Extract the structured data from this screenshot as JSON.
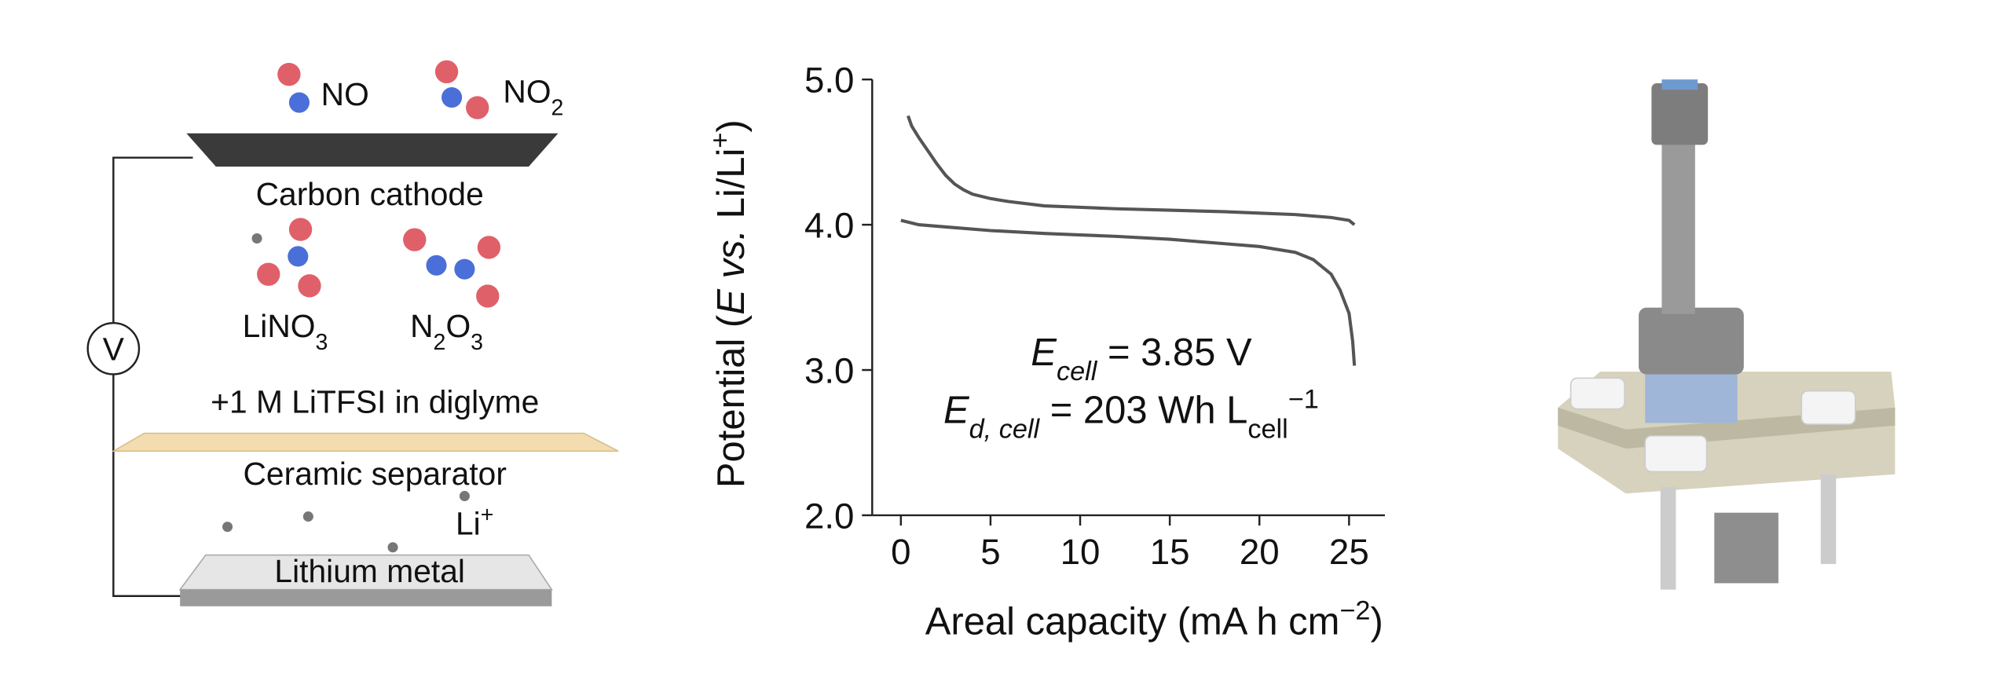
{
  "chart_data": {
    "type": "line",
    "ylabel": [
      {
        "text": "Potential ("
      },
      {
        "text": "E",
        "style": "italic"
      },
      {
        "text": " "
      },
      {
        "text": "vs.",
        "style": "italic"
      },
      {
        "text": " Li/Li"
      },
      {
        "text": "+",
        "style": "sup"
      },
      {
        "text": ")"
      }
    ],
    "xlabel": [
      {
        "text": "Areal capacity (mA h cm"
      },
      {
        "text": "−2",
        "style": "sup"
      },
      {
        "text": ")"
      }
    ],
    "annotations": [
      [
        {
          "text": "E",
          "style": "italic"
        },
        {
          "text": "cell",
          "style": "sub-italic"
        },
        {
          "text": " = 3.85 V"
        }
      ],
      [
        {
          "text": "E",
          "style": "italic"
        },
        {
          "text": "d, cell",
          "style": "sub-italic"
        },
        {
          "text": " = 203 Wh L"
        },
        {
          "text": "cell",
          "style": "sub"
        },
        {
          "text": "−1",
          "style": "sup"
        }
      ]
    ],
    "series": [
      {
        "color": "#555555",
        "x": [
          0.4,
          0.6,
          1,
          1.5,
          2,
          2.5,
          3,
          3.5,
          4,
          5,
          6,
          8,
          10,
          12,
          15,
          18,
          20,
          22,
          24,
          25,
          25.2,
          25.3
        ],
        "values": [
          4.75,
          4.68,
          4.6,
          4.51,
          4.42,
          4.34,
          4.28,
          4.24,
          4.21,
          4.18,
          4.16,
          4.13,
          4.12,
          4.11,
          4.1,
          4.09,
          4.08,
          4.07,
          4.05,
          4.03,
          4.01,
          4.0
        ]
      },
      {
        "color": "#555555",
        "x": [
          0,
          1,
          3,
          5,
          8,
          10,
          12,
          15,
          18,
          20,
          22,
          23,
          24,
          24.5,
          25,
          25.2,
          25.3
        ],
        "values": [
          4.03,
          4.0,
          3.98,
          3.96,
          3.94,
          3.93,
          3.92,
          3.9,
          3.87,
          3.85,
          3.81,
          3.76,
          3.66,
          3.55,
          3.39,
          3.2,
          3.03
        ]
      }
    ],
    "xlim": [
      -1.6,
      27
    ],
    "ylim": [
      2,
      5
    ],
    "xticks": [
      0,
      5,
      10,
      15,
      20,
      25
    ],
    "yticks": [
      {
        "value": 2,
        "label": "2.0"
      },
      {
        "value": 3,
        "label": "3.0"
      },
      {
        "value": 4,
        "label": "4.0"
      },
      {
        "value": 5,
        "label": "5.0"
      }
    ]
  },
  "diagram": {
    "no": "NO",
    "no2": [
      {
        "text": "NO"
      },
      {
        "text": "2",
        "style": "sub"
      }
    ],
    "cathode": "Carbon cathode",
    "lino3": [
      {
        "text": "LiNO"
      },
      {
        "text": "3",
        "style": "sub"
      }
    ],
    "n2o3": [
      {
        "text": "N"
      },
      {
        "text": "2",
        "style": "sub"
      },
      {
        "text": "O"
      },
      {
        "text": "3",
        "style": "sub"
      }
    ],
    "voltmeter": "V",
    "electrolyte": "+1 M LiTFSI in diglyme",
    "separator": "Ceramic separator",
    "li_ion": [
      {
        "text": "Li"
      },
      {
        "text": "+",
        "style": "sup"
      }
    ],
    "anode": "Lithium metal"
  }
}
